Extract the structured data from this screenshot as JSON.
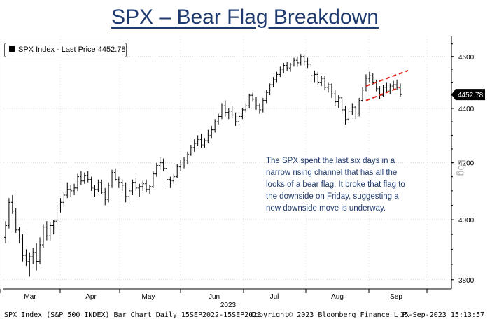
{
  "title": "SPX – Bear Flag Breakdown",
  "legend": "SPX Index - Last Price 4452.78",
  "last_price_label": "4452.78",
  "annotation": "The SPX spent the last six days in a narrow rising channel that has all the looks of a bear flag. It broke that flag to the downside on Friday, suggesting a new downside move is underway.",
  "log_label": "Log",
  "footer": {
    "left": "SPX Index (S&P 500 INDEX) Bar Chart  Daily 15SEP2022-15SEP2023",
    "middle": "Copyright© 2023 Bloomberg Finance L.P.",
    "right": "15-Sep-2023 15:13:57"
  },
  "colors": {
    "title": "#1f3a6e",
    "bars": "#000000",
    "flag": "#e0201b",
    "annotation": "#1f3a6e"
  },
  "chart_data": {
    "type": "ohlc-bar",
    "title": "SPX – Bear Flag Breakdown",
    "series": [
      {
        "name": "SPX Index - Last Price"
      }
    ],
    "x_tick_labels": [
      "Mar",
      "Apr",
      "May",
      "Jun",
      "Jul",
      "Aug",
      "Sep"
    ],
    "x_year_label": "2023",
    "y_tick_labels": [
      "3800",
      "4000",
      "4200",
      "4400",
      "4600"
    ],
    "y_ticks": [
      3800,
      4000,
      4200,
      4400,
      4600
    ],
    "ylim": [
      3770,
      4680
    ],
    "y_scale": "log",
    "y_axis_side": "right",
    "last_price": 4452.78,
    "bars": [
      [
        3940,
        3995,
        3920,
        3980
      ],
      [
        3980,
        4075,
        3970,
        4060
      ],
      [
        4060,
        4085,
        4020,
        4030
      ],
      [
        4030,
        4040,
        3955,
        3965
      ],
      [
        3965,
        3975,
        3920,
        3935
      ],
      [
        3935,
        3950,
        3860,
        3880
      ],
      [
        3880,
        3900,
        3845,
        3860
      ],
      [
        3860,
        3890,
        3810,
        3875
      ],
      [
        3875,
        3905,
        3850,
        3890
      ],
      [
        3890,
        3920,
        3830,
        3860
      ],
      [
        3860,
        3940,
        3850,
        3915
      ],
      [
        3915,
        3985,
        3905,
        3975
      ],
      [
        3975,
        3995,
        3930,
        3945
      ],
      [
        3945,
        3990,
        3930,
        3980
      ],
      [
        3980,
        4000,
        3950,
        3995
      ],
      [
        3995,
        4050,
        3985,
        4040
      ],
      [
        4040,
        4075,
        4025,
        4060
      ],
      [
        4060,
        4095,
        4045,
        4085
      ],
      [
        4085,
        4130,
        4075,
        4105
      ],
      [
        4105,
        4120,
        4080,
        4100
      ],
      [
        4100,
        4125,
        4085,
        4110
      ],
      [
        4110,
        4160,
        4100,
        4150
      ],
      [
        4150,
        4170,
        4120,
        4135
      ],
      [
        4135,
        4165,
        4125,
        4155
      ],
      [
        4155,
        4170,
        4130,
        4140
      ],
      [
        4140,
        4150,
        4100,
        4110
      ],
      [
        4110,
        4120,
        4080,
        4105
      ],
      [
        4105,
        4140,
        4095,
        4130
      ],
      [
        4130,
        4140,
        4090,
        4095
      ],
      [
        4095,
        4110,
        4050,
        4070
      ],
      [
        4070,
        4130,
        4060,
        4120
      ],
      [
        4120,
        4175,
        4110,
        4165
      ],
      [
        4165,
        4180,
        4135,
        4140
      ],
      [
        4140,
        4150,
        4110,
        4130
      ],
      [
        4130,
        4140,
        4100,
        4120
      ],
      [
        4120,
        4130,
        4060,
        4080
      ],
      [
        4080,
        4110,
        4055,
        4100
      ],
      [
        4100,
        4140,
        4085,
        4130
      ],
      [
        4130,
        4145,
        4100,
        4110
      ],
      [
        4110,
        4125,
        4080,
        4115
      ],
      [
        4115,
        4135,
        4100,
        4125
      ],
      [
        4125,
        4140,
        4095,
        4105
      ],
      [
        4105,
        4120,
        4090,
        4115
      ],
      [
        4115,
        4170,
        4110,
        4160
      ],
      [
        4160,
        4200,
        4150,
        4190
      ],
      [
        4190,
        4220,
        4175,
        4200
      ],
      [
        4200,
        4215,
        4170,
        4180
      ],
      [
        4180,
        4190,
        4120,
        4140
      ],
      [
        4140,
        4150,
        4110,
        4135
      ],
      [
        4135,
        4160,
        4125,
        4150
      ],
      [
        4150,
        4195,
        4145,
        4185
      ],
      [
        4185,
        4210,
        4170,
        4195
      ],
      [
        4195,
        4220,
        4180,
        4210
      ],
      [
        4210,
        4240,
        4195,
        4230
      ],
      [
        4230,
        4265,
        4225,
        4255
      ],
      [
        4255,
        4285,
        4240,
        4270
      ],
      [
        4270,
        4300,
        4260,
        4285
      ],
      [
        4285,
        4305,
        4255,
        4265
      ],
      [
        4265,
        4290,
        4255,
        4280
      ],
      [
        4280,
        4320,
        4270,
        4300
      ],
      [
        4300,
        4335,
        4290,
        4320
      ],
      [
        4320,
        4360,
        4310,
        4350
      ],
      [
        4350,
        4380,
        4340,
        4370
      ],
      [
        4370,
        4420,
        4360,
        4410
      ],
      [
        4410,
        4430,
        4370,
        4385
      ],
      [
        4385,
        4400,
        4360,
        4390
      ],
      [
        4390,
        4410,
        4365,
        4375
      ],
      [
        4375,
        4385,
        4335,
        4350
      ],
      [
        4350,
        4380,
        4340,
        4370
      ],
      [
        4370,
        4400,
        4360,
        4395
      ],
      [
        4395,
        4420,
        4385,
        4410
      ],
      [
        4410,
        4455,
        4400,
        4450
      ],
      [
        4450,
        4460,
        4425,
        4435
      ],
      [
        4435,
        4445,
        4395,
        4410
      ],
      [
        4410,
        4420,
        4380,
        4395
      ],
      [
        4395,
        4440,
        4385,
        4430
      ],
      [
        4430,
        4470,
        4420,
        4460
      ],
      [
        4460,
        4495,
        4450,
        4490
      ],
      [
        4490,
        4520,
        4480,
        4510
      ],
      [
        4510,
        4540,
        4500,
        4530
      ],
      [
        4530,
        4560,
        4520,
        4550
      ],
      [
        4550,
        4575,
        4535,
        4565
      ],
      [
        4565,
        4580,
        4545,
        4555
      ],
      [
        4555,
        4575,
        4540,
        4570
      ],
      [
        4570,
        4595,
        4560,
        4585
      ],
      [
        4585,
        4600,
        4560,
        4575
      ],
      [
        4575,
        4610,
        4565,
        4600
      ],
      [
        4600,
        4605,
        4565,
        4580
      ],
      [
        4580,
        4595,
        4555,
        4570
      ],
      [
        4570,
        4585,
        4510,
        4525
      ],
      [
        4525,
        4545,
        4500,
        4530
      ],
      [
        4530,
        4540,
        4490,
        4500
      ],
      [
        4500,
        4525,
        4485,
        4515
      ],
      [
        4515,
        4525,
        4470,
        4480
      ],
      [
        4480,
        4500,
        4460,
        4490
      ],
      [
        4490,
        4495,
        4440,
        4455
      ],
      [
        4455,
        4470,
        4410,
        4425
      ],
      [
        4425,
        4450,
        4400,
        4440
      ],
      [
        4440,
        4445,
        4380,
        4395
      ],
      [
        4395,
        4410,
        4340,
        4360
      ],
      [
        4360,
        4400,
        4350,
        4390
      ],
      [
        4390,
        4420,
        4375,
        4405
      ],
      [
        4405,
        4410,
        4360,
        4375
      ],
      [
        4375,
        4440,
        4370,
        4430
      ],
      [
        4430,
        4480,
        4425,
        4470
      ],
      [
        4470,
        4530,
        4465,
        4515
      ],
      [
        4515,
        4540,
        4500,
        4525
      ],
      [
        4525,
        4535,
        4490,
        4500
      ],
      [
        4500,
        4510,
        4465,
        4475
      ],
      [
        4475,
        4485,
        4435,
        4450
      ],
      [
        4450,
        4490,
        4445,
        4480
      ],
      [
        4480,
        4500,
        4460,
        4470
      ],
      [
        4470,
        4495,
        4455,
        4485
      ],
      [
        4485,
        4505,
        4470,
        4490
      ],
      [
        4490,
        4510,
        4470,
        4480
      ],
      [
        4480,
        4495,
        4445,
        4452.78
      ]
    ]
  }
}
